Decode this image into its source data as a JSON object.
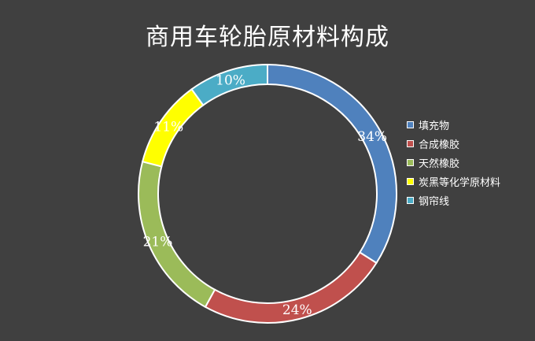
{
  "chart_data": {
    "type": "pie",
    "title": "商用车轮胎原材料构成",
    "categories": [
      "填充物",
      "合成橡胶",
      "天然橡胶",
      "炭黑等化学原材料",
      "钢帘线"
    ],
    "values": [
      34,
      24,
      21,
      11,
      10
    ],
    "value_labels": [
      "34%",
      "24%",
      "21%",
      "11%",
      "10%"
    ],
    "colors": [
      "#4f81bd",
      "#c0504d",
      "#9bbb59",
      "#ffff00",
      "#4bacc6"
    ],
    "legend_position": "right",
    "style": "donut"
  }
}
